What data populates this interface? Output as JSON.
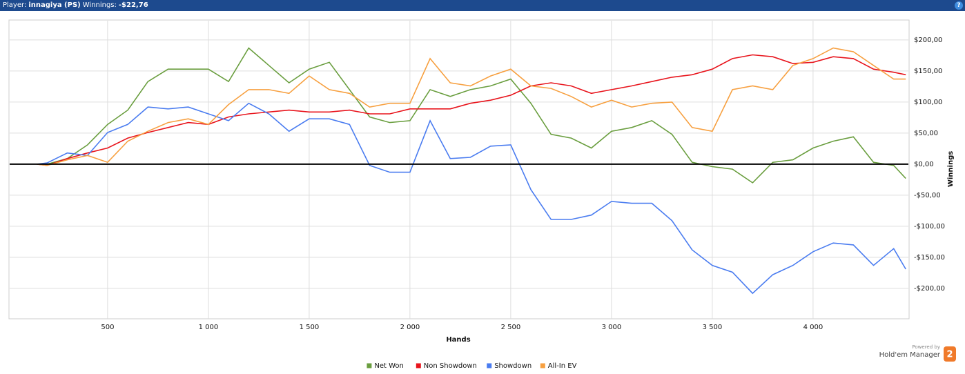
{
  "header": {
    "player_label": "Player:",
    "player": "innagiya (PS)",
    "winnings_label": "Winnings:",
    "winnings": "-$22,76",
    "help": "?"
  },
  "chart_data": {
    "type": "line",
    "x_label": "Hands",
    "y_label": "Winnings",
    "x": [
      150,
      200,
      300,
      400,
      500,
      600,
      700,
      800,
      900,
      1000,
      1100,
      1200,
      1300,
      1400,
      1500,
      1600,
      1700,
      1800,
      1900,
      2000,
      2100,
      2200,
      2300,
      2400,
      2500,
      2600,
      2700,
      2800,
      2900,
      3000,
      3100,
      3200,
      3300,
      3400,
      3500,
      3600,
      3700,
      3800,
      3900,
      4000,
      4100,
      4200,
      4300,
      4400,
      4460
    ],
    "series": [
      {
        "name": "Net Won",
        "color": "#6a9e3f",
        "values": [
          0,
          0,
          9,
          31,
          64,
          87,
          133,
          153,
          153,
          153,
          133,
          187,
          159,
          131,
          153,
          164,
          120,
          76,
          67,
          70,
          120,
          109,
          120,
          126,
          137,
          98,
          48,
          42,
          26,
          53,
          59,
          70,
          48,
          3,
          -4,
          -8,
          -30,
          3,
          7,
          26,
          37,
          44,
          3,
          -2,
          -23
        ]
      },
      {
        "name": "Non Showdown",
        "color": "#e8141c",
        "values": [
          0,
          -2,
          9,
          18,
          26,
          42,
          51,
          59,
          67,
          64,
          76,
          81,
          84,
          87,
          84,
          84,
          87,
          81,
          81,
          89,
          89,
          89,
          98,
          103,
          111,
          126,
          131,
          126,
          114,
          120,
          126,
          133,
          140,
          144,
          153,
          170,
          176,
          173,
          162,
          164,
          173,
          170,
          153,
          148,
          144
        ]
      },
      {
        "name": "Showdown",
        "color": "#4a7cf0",
        "values": [
          0,
          2,
          18,
          14,
          51,
          64,
          92,
          89,
          92,
          81,
          70,
          98,
          81,
          53,
          73,
          73,
          64,
          -2,
          -13,
          -13,
          70,
          9,
          11,
          29,
          31,
          -41,
          -89,
          -89,
          -82,
          -60,
          -63,
          -63,
          -91,
          -138,
          -163,
          -174,
          -208,
          -178,
          -163,
          -141,
          -127,
          -130,
          -163,
          -136,
          -169
        ]
      },
      {
        "name": "All-In EV",
        "color": "#f7a040",
        "values": [
          0,
          -2,
          7,
          14,
          3,
          37,
          53,
          67,
          73,
          64,
          96,
          120,
          120,
          114,
          142,
          120,
          114,
          92,
          98,
          98,
          170,
          131,
          126,
          142,
          153,
          126,
          122,
          109,
          92,
          103,
          92,
          98,
          100,
          59,
          53,
          120,
          126,
          120,
          159,
          170,
          187,
          181,
          159,
          137,
          137
        ]
      }
    ],
    "xlim": [
      14,
      4473
    ],
    "ylim": [
      -249,
      231
    ],
    "xticks": [
      500,
      {
        "value": 1000,
        "label": "1 000"
      },
      {
        "value": 1500,
        "label": "1 500"
      },
      {
        "value": 2000,
        "label": "2 000"
      },
      {
        "value": 2500,
        "label": "2 500"
      },
      {
        "value": 3000,
        "label": "3 000"
      },
      {
        "value": 3500,
        "label": "3 500"
      },
      {
        "value": 4000,
        "label": "4 000"
      }
    ],
    "yticks": [
      {
        "value": -200,
        "label": "-$200,00"
      },
      {
        "value": -150,
        "label": "-$150,00"
      },
      {
        "value": -100,
        "label": "-$100,00"
      },
      {
        "value": -50,
        "label": "-$50,00"
      },
      {
        "value": 0,
        "label": "$0,00"
      },
      {
        "value": 50,
        "label": "$50,00"
      },
      {
        "value": 100,
        "label": "$100,00"
      },
      {
        "value": 150,
        "label": "$150,00"
      },
      {
        "value": 200,
        "label": "$200,00"
      }
    ],
    "grid": true,
    "zero_line": true,
    "legend": "bottom"
  },
  "footer": {
    "powered_by": "Powered by",
    "brand": "Hold'em Manager",
    "logo": "2"
  }
}
